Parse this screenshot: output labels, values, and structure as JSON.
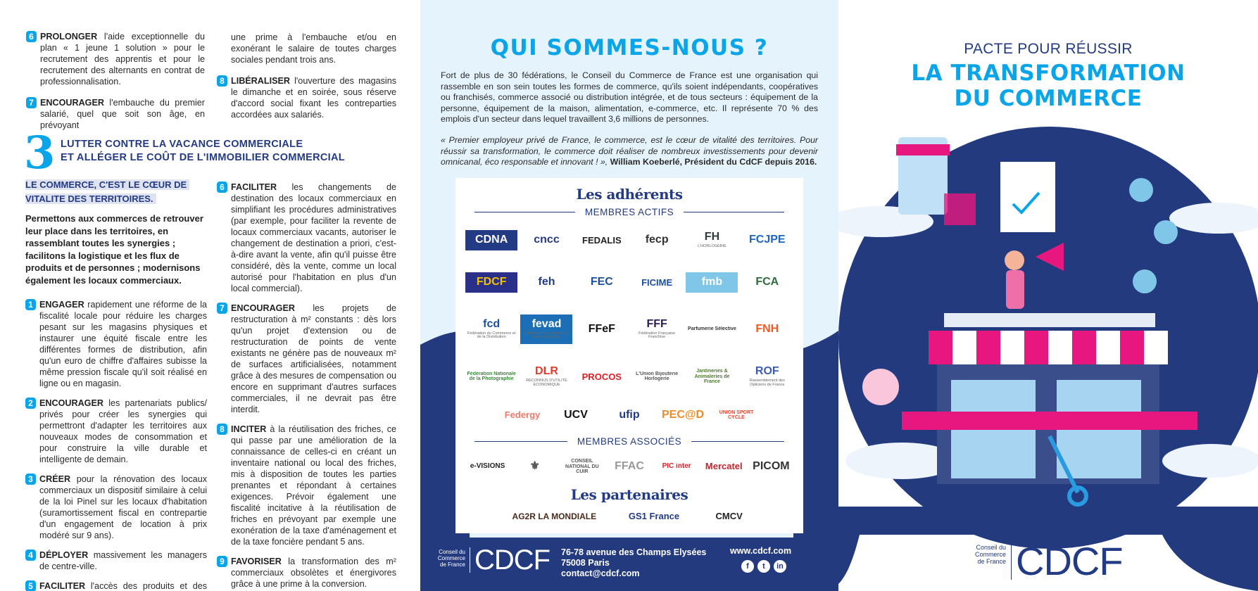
{
  "colors": {
    "accent": "#0aa5e8",
    "navy": "#233a84",
    "pink": "#e8177f",
    "mid_bg": "#e5f3fc"
  },
  "left": {
    "top_items": [
      {
        "num": "6",
        "verb": "PROLONGER",
        "text": " l'aide exceptionnelle du plan « 1 jeune 1 solution » pour le recrutement des apprentis et pour le recrutement des alternants en contrat de professionnalisation."
      },
      {
        "num": "7",
        "verb": "ENCOURAGER",
        "text": " l'embauche du premier salarié, quel que soit son âge, en prévoyant",
        "continuation": "une prime à l'embauche et/ou en exonérant le salaire de toutes charges sociales pendant trois ans."
      },
      {
        "num": "8",
        "verb": "LIBÉRALISER",
        "text": " l'ouverture des magasins le dimanche et en soirée, sous réserve d'accord social fixant les contreparties accordées aux salariés."
      }
    ],
    "section": {
      "number": "3",
      "title_line1": "LUTTER CONTRE LA VACANCE COMMERCIALE",
      "title_line2": "ET ALLÉGER LE COÛT DE L'IMMOBILIER COMMERCIAL",
      "highlight_line1": "LE COMMERCE, C'EST LE CŒUR DE",
      "highlight_line2": "VITALITE DES TERRITOIRES.",
      "intro": "Permettons aux commerces de retrouver leur place dans les territoires, en rassemblant toutes les synergies ; facilitons la logistique et les flux de produits et de personnes ; modernisons également les locaux commerciaux.",
      "items_col1": [
        {
          "num": "1",
          "verb": "ENGAGER",
          "text": " rapidement une réforme de la fiscalité locale pour réduire les charges pesant sur les magasins physiques et instaurer une équité fiscale entre les différentes formes de distribution, afin qu'un euro de chiffre d'affaires subisse la même pression fiscale qu'il soit réalisé en ligne ou en magasin."
        },
        {
          "num": "2",
          "verb": "ENCOURAGER",
          "text": " les partenariats publics/ privés pour créer les synergies qui permettront d'adapter les territoires aux nouveaux modes de consommation et pour construire la ville durable et intelligente de demain."
        },
        {
          "num": "3",
          "verb": "CRÉER",
          "text": " pour la rénovation des locaux commerciaux un dispositif similaire à celui de la loi Pinel sur les locaux d'habitation (suramortissement fiscal en contrepartie d'un engagement de location à prix modéré sur 9 ans)."
        },
        {
          "num": "4",
          "verb": "DÉPLOYER",
          "text": " massivement les managers de centre-ville."
        },
        {
          "num": "5",
          "verb": "FACILITER",
          "text": " l'accès des produits et des clients aux centres-villes et aux zones commerciales."
        }
      ],
      "items_col2": [
        {
          "num": "6",
          "verb": "FACILITER",
          "text": " les changements de destination des locaux commerciaux en simplifiant les procédures administratives (par exemple, pour faciliter la revente de locaux commerciaux vacants, autoriser le changement de destination a priori, c'est-à-dire avant la vente, afin qu'il puisse être considéré, dès la vente, comme un local autorisé pour l'habitation en plus d'un local commercial)."
        },
        {
          "num": "7",
          "verb": "ENCOURAGER",
          "text": " les projets de restructuration à m² constants : dès lors qu'un projet d'extension ou de restructuration de points de vente existants ne génère pas de nouveaux m² de surfaces artificialisées, notamment grâce à des mesures de compensation ou encore en supprimant d'autres surfaces commerciales, il ne devrait pas être interdit."
        },
        {
          "num": "8",
          "verb": "INCITER",
          "text": " à la réutilisation des friches, ce qui passe par une amélioration de la connaissance de celles-ci en créant un inventaire national ou local des friches, mis à disposition de toutes les parties prenantes et répondant à certaines exigences. Prévoir également une fiscalité incitative à la réutilisation de friches en prévoyant par exemple une exonération de la taxe d'aménagement et de la taxe foncière pendant 5 ans."
        },
        {
          "num": "9",
          "verb": "FAVORISER",
          "text": " la transformation des m² commerciaux obsolètes et énergivores grâce à une prime à la conversion."
        }
      ]
    }
  },
  "middle": {
    "title": "QUI SOMMES-NOUS ?",
    "paragraph": "Fort de plus de 30 fédérations, le Conseil du Commerce de France est une organisation qui rassemble en son sein toutes les formes de commerce, qu'ils soient indépendants, coopératives ou franchisés, commerce associé ou distribution intégrée, et de tous secteurs : équipement de la personne, équipement de la maison, alimentation, e-commerce, etc. Il représente 70 % des emplois d'un secteur dans lequel travaillent 3,6 millions de personnes.",
    "quote": "« Premier employeur privé de France, le commerce, est le cœur de vitalité des territoires. Pour réussir sa transformation, le commerce doit réaliser de nombreux investissements pour devenir omnicanal, éco responsable et innovant ! », ",
    "quote_author": "William Koeberlé, Président du CdCF depuis 2016.",
    "adherents_title": "Les adhérents",
    "membres_actifs_label": "MEMBRES ACTIFS",
    "membres_actifs_rows": [
      [
        {
          "name": "CDNA",
          "color": "#ffffff",
          "bg": "#233a84"
        },
        {
          "name": "cncc",
          "color": "#233a84"
        },
        {
          "name": "FEDALIS",
          "color": "#222"
        },
        {
          "name": "fecp",
          "color": "#333"
        },
        {
          "name": "FH",
          "sub": "L'HORLOGERIE",
          "color": "#2f3b3b"
        },
        {
          "name": "FCJPE",
          "color": "#1a66c4"
        }
      ],
      [
        {
          "name": "FDCF",
          "color": "#f2c200",
          "bg": "#2a2f8a"
        },
        {
          "name": "feh",
          "color": "#233a84"
        },
        {
          "name": "FEC",
          "color": "#1c4fa0"
        },
        {
          "name": "FICIME",
          "color": "#1c4fa0"
        },
        {
          "name": "fmb",
          "color": "#ffffff",
          "bg": "#7fc6e8"
        },
        {
          "name": "FCA",
          "color": "#2e6d3a"
        }
      ],
      [
        {
          "name": "fcd",
          "sub": "Fédération du Commerce et de la Distribution",
          "color": "#1c4fa0"
        },
        {
          "name": "fevad",
          "sub": "fédération e-commerce et vente à distance",
          "color": "#ffffff",
          "bg": "#1c6fb5"
        },
        {
          "name": "FFeF",
          "color": "#111"
        },
        {
          "name": "FFF",
          "sub": "Fédération Française Franchise",
          "color": "#2d1a5a"
        },
        {
          "name": "Parfumerie Sélective",
          "color": "#333"
        },
        {
          "name": "FNH",
          "color": "#f05a24"
        }
      ],
      [
        {
          "name": "Fédération Nationale de la Photographie",
          "color": "#3a8a3a"
        },
        {
          "name": "DLR",
          "sub": "RECONNUS D'UTILITÉ ÉCONOMIQUE",
          "color": "#e63c2f"
        },
        {
          "name": "PROCOS",
          "color": "#e31e24"
        },
        {
          "name": "L'Union Bijouterie Horlogerie",
          "color": "#555"
        },
        {
          "name": "Jardineries & Animaleries de France",
          "color": "#4d7a2a"
        },
        {
          "name": "ROF",
          "sub": "Rassemblement des Opticiens de France",
          "color": "#3b5bb5"
        }
      ],
      [
        {
          "name": "Federgy",
          "color": "#f07a6a"
        },
        {
          "name": "UCV",
          "color": "#111"
        },
        {
          "name": "ufip",
          "color": "#233a84"
        },
        {
          "name": "PEC@D",
          "color": "#f08a24"
        },
        {
          "name": "UNION SPORT CYCLE",
          "color": "#e8412a"
        }
      ]
    ],
    "membres_associes_label": "MEMBRES ASSOCIÉS",
    "membres_associes": [
      {
        "name": "e-VISIONS",
        "color": "#222"
      },
      {
        "name": "⚜",
        "color": "#555"
      },
      {
        "name": "CONSEIL NATIONAL DU CUIR",
        "color": "#555"
      },
      {
        "name": "FFAC",
        "color": "#999"
      },
      {
        "name": "PIC inter",
        "color": "#e31e24"
      },
      {
        "name": "Mercatel",
        "color": "#c1272d"
      },
      {
        "name": "PICOM",
        "color": "#333"
      }
    ],
    "partenaires_title": "Les partenaires",
    "partenaires": [
      {
        "name": "AG2R LA MONDIALE",
        "color": "#4a2a1a"
      },
      {
        "name": "GS1 France",
        "color": "#233a84"
      },
      {
        "name": "CMCV",
        "color": "#222"
      }
    ],
    "footer": {
      "brand_small": [
        "Conseil du",
        "Commerce",
        "de France"
      ],
      "brand_logo": "CDCF",
      "address": [
        "76-78 avenue des Champs Elysées",
        "75008 Paris",
        "contact@cdcf.com"
      ],
      "website": "www.cdcf.com",
      "social": [
        {
          "icon": "facebook-icon",
          "glyph": "f"
        },
        {
          "icon": "twitter-icon",
          "glyph": "t"
        },
        {
          "icon": "linkedin-icon",
          "glyph": "in"
        }
      ]
    }
  },
  "right": {
    "title_small": "PACTE POUR RÉUSSIR",
    "title_big_line1": "LA TRANSFORMATION",
    "title_big_line2": "DU COMMERCE",
    "brand_small": [
      "Conseil du",
      "Commerce",
      "de France"
    ],
    "brand_logo": "CDCF"
  }
}
